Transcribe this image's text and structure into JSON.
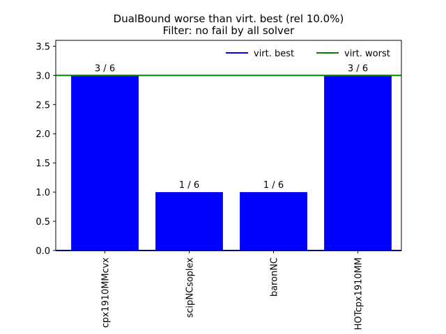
{
  "chart_data": {
    "type": "bar",
    "title": "DualBound worse than virt. best (rel 10.0%)",
    "subtitle": "Filter: no fail by all solver",
    "xlabel": "",
    "ylabel": "",
    "categories": [
      "cpx1910MMcvx",
      "scipNCsoplex",
      "baronNC",
      "HOTcpx1910MM"
    ],
    "values": [
      3,
      1,
      1,
      3
    ],
    "bar_labels": [
      "3 / 6",
      "1 / 6",
      "1 / 6",
      "3 / 6"
    ],
    "ylim": [
      0,
      3.6
    ],
    "yticks": [
      "0.0",
      "0.5",
      "1.0",
      "1.5",
      "2.0",
      "2.5",
      "3.0",
      "3.5"
    ],
    "ytick_values": [
      0,
      0.5,
      1.0,
      1.5,
      2.0,
      2.5,
      3.0,
      3.5
    ],
    "reference_lines": [
      {
        "name": "virt. best",
        "value": 0,
        "color": "#0000ff"
      },
      {
        "name": "virt. worst",
        "value": 3,
        "color": "#008000"
      }
    ],
    "bar_color": "#0000ff",
    "legend_position": "top-right",
    "grid": false
  }
}
